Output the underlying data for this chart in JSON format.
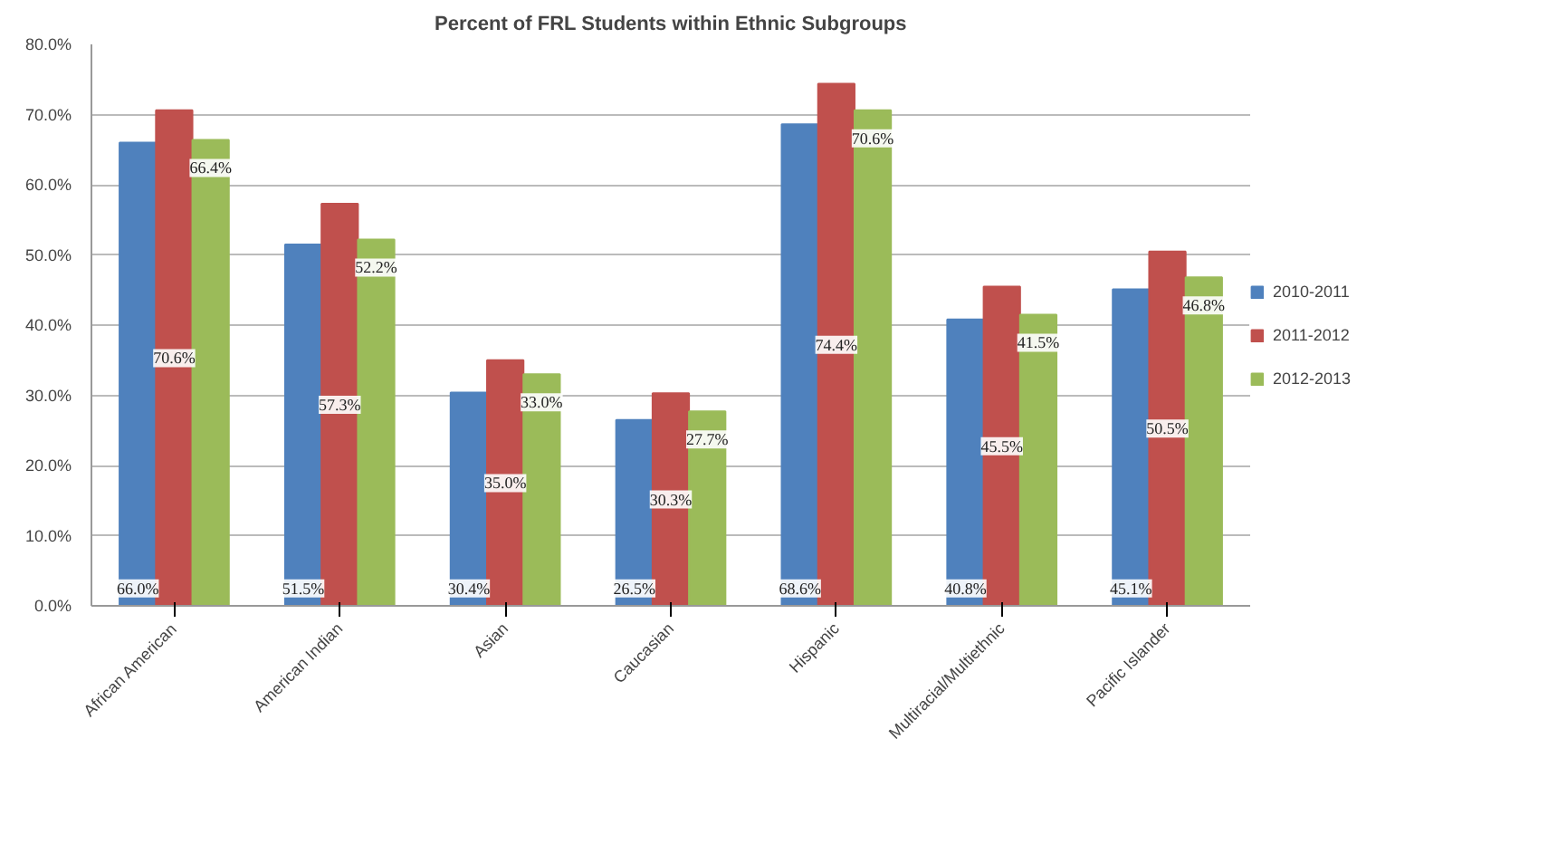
{
  "chart_data": {
    "type": "bar",
    "title": "Percent of FRL Students within Ethnic Subgroups",
    "categories": [
      "African American",
      "American Indian",
      "Asian",
      "Caucasian",
      "Hispanic",
      "Multiracial/Multiethnic",
      "Pacific Islander"
    ],
    "series": [
      {
        "name": "2010-2011",
        "color": "#4f81bd",
        "values": [
          66.0,
          51.5,
          30.4,
          26.5,
          68.6,
          40.8,
          45.1
        ],
        "value_labels": [
          "66.0%",
          "51.5%",
          "30.4%",
          "26.5%",
          "68.6%",
          "40.8%",
          "45.1%"
        ]
      },
      {
        "name": "2011-2012",
        "color": "#c0504d",
        "values": [
          70.6,
          57.3,
          35.0,
          30.3,
          74.4,
          45.5,
          50.5
        ],
        "value_labels": [
          "70.6%",
          "57.3%",
          "35.0%",
          "30.3%",
          "74.4%",
          "45.5%",
          "50.5%"
        ]
      },
      {
        "name": "2012-2013",
        "color": "#9bbb59",
        "values": [
          66.4,
          52.2,
          33.0,
          27.7,
          70.6,
          41.5,
          46.8
        ],
        "value_labels": [
          "66.4%",
          "52.2%",
          "33.0%",
          "27.7%",
          "70.6%",
          "41.5%",
          "46.8%"
        ]
      }
    ],
    "ylim": [
      0,
      80
    ],
    "yticks": [
      {
        "value": 0,
        "label": "0.0%"
      },
      {
        "value": 10,
        "label": "10.0%"
      },
      {
        "value": 20,
        "label": "20.0%"
      },
      {
        "value": 30,
        "label": "30.0%"
      },
      {
        "value": 40,
        "label": "40.0%"
      },
      {
        "value": 50,
        "label": "50.0%"
      },
      {
        "value": 60,
        "label": "60.0%"
      },
      {
        "value": 70,
        "label": "70.0%"
      },
      {
        "value": 80,
        "label": "80.0%"
      }
    ],
    "grid": "y",
    "legend": "right"
  }
}
